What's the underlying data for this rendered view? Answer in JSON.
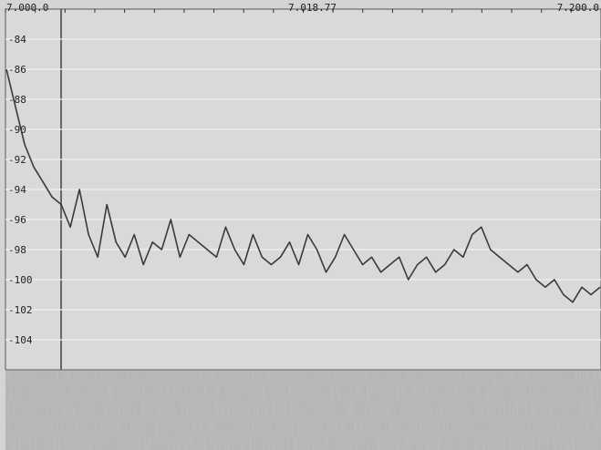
{
  "chart_data": {
    "type": "line",
    "scale_labels": [
      "7.000.0",
      "7.018.77",
      "7.200.0"
    ],
    "categories": [
      null,
      null,
      null,
      null,
      null,
      null,
      null,
      null,
      null,
      null,
      null,
      null,
      null,
      null,
      null,
      null,
      null,
      null,
      null,
      null,
      null,
      null,
      null,
      null,
      null,
      null,
      null,
      null,
      null,
      null,
      null,
      null,
      null,
      null,
      null,
      null,
      null,
      null,
      null,
      null,
      null,
      null,
      null,
      null,
      null,
      null,
      null,
      null,
      null,
      null,
      null,
      null,
      null,
      null,
      null,
      null,
      null,
      null,
      null,
      null,
      null,
      null,
      null,
      null,
      null,
      null
    ],
    "values": [
      -86,
      -88.5,
      -91,
      -92.5,
      -93.5,
      -94.5,
      -95,
      -96.5,
      -94,
      -97,
      -98.5,
      -95,
      -97.5,
      -98.5,
      -97,
      -99,
      -97.5,
      -98,
      -96,
      -98.5,
      -97,
      -97.5,
      -98,
      -98.5,
      -96.5,
      -98,
      -99,
      -97,
      -98.5,
      -99,
      -98.5,
      -97.5,
      -99,
      -97,
      -98,
      -99.5,
      -98.5,
      -97,
      -98,
      -99,
      -98.5,
      -99.5,
      -99,
      -98.5,
      -100,
      -99,
      -98.5,
      -99.5,
      -99,
      -98,
      -98.5,
      -97,
      -96.5,
      -98,
      -98.5,
      -99,
      -99.5,
      -99,
      -100,
      -100.5,
      -100,
      -101,
      -101.5,
      -100.5,
      -101,
      -100.5
    ],
    "color": "#3a3a3a",
    "ylim": [
      -106,
      -82
    ],
    "yticks": [
      -84,
      -86,
      -88,
      -90,
      -92,
      -94,
      -96,
      -98,
      -100,
      -102,
      -104
    ],
    "grid": true
  }
}
